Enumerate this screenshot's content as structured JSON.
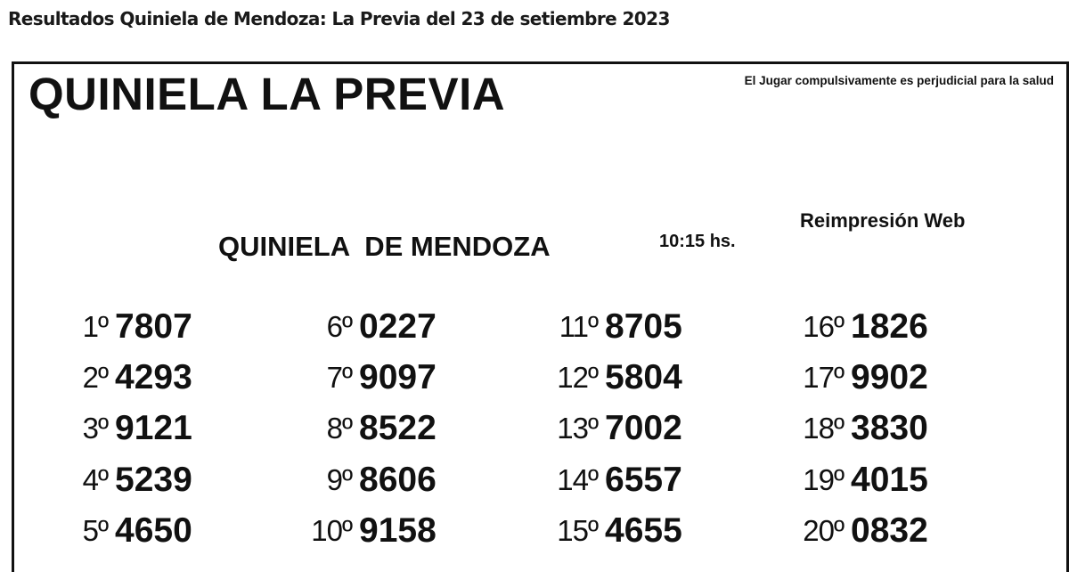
{
  "page_heading": "Resultados Quiniela de Mendoza: La Previa del 23 de setiembre 2023",
  "ticket": {
    "title": "QUINIELA LA PREVIA",
    "warning": "El Jugar compulsivamente es perjudicial para la salud",
    "subtitle": "QUINIELA  DE MENDOZA",
    "time": "10:15 hs.",
    "reprint_label": "Reimpresión Web",
    "results": [
      {
        "pos": "1º",
        "number": "7807"
      },
      {
        "pos": "2º",
        "number": "4293"
      },
      {
        "pos": "3º",
        "number": "9121"
      },
      {
        "pos": "4º",
        "number": "5239"
      },
      {
        "pos": "5º",
        "number": "4650"
      },
      {
        "pos": "6º",
        "number": "0227"
      },
      {
        "pos": "7º",
        "number": "9097"
      },
      {
        "pos": "8º",
        "number": "8522"
      },
      {
        "pos": "9º",
        "number": "8606"
      },
      {
        "pos": "10º",
        "number": "9158"
      },
      {
        "pos": "11º",
        "number": "8705"
      },
      {
        "pos": "12º",
        "number": "5804"
      },
      {
        "pos": "13º",
        "number": "7002"
      },
      {
        "pos": "14º",
        "number": "6557"
      },
      {
        "pos": "15º",
        "number": "4655"
      },
      {
        "pos": "16º",
        "number": "1826"
      },
      {
        "pos": "17º",
        "number": "9902"
      },
      {
        "pos": "18º",
        "number": "3830"
      },
      {
        "pos": "19º",
        "number": "4015"
      },
      {
        "pos": "20º",
        "number": "0832"
      }
    ]
  }
}
